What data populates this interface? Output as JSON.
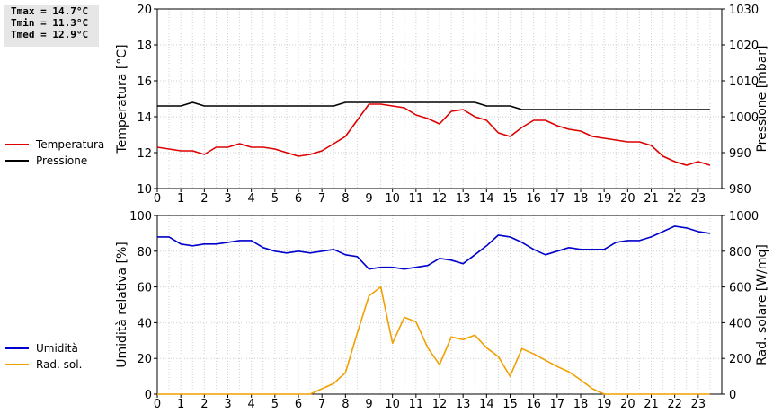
{
  "stats": {
    "tmax": "Tmax = 14.7°C",
    "tmin": "Tmin = 11.3°C",
    "tmed": "Tmed = 12.9°C"
  },
  "legend_top": [
    {
      "label": "Temperatura",
      "color": "#dd0000"
    },
    {
      "label": "Pressione",
      "color": "#000000"
    }
  ],
  "legend_bottom": [
    {
      "label": "Umidità",
      "color": "#0000cc"
    },
    {
      "label": "Rad. sol.",
      "color": "#f0a000"
    }
  ],
  "chart_data": [
    {
      "type": "line",
      "xlabel": "",
      "ylabel_left": "Temperatura [°C]",
      "ylabel_right": "Pressione [mbar]",
      "xlim": [
        0,
        24
      ],
      "ylim_left": [
        10,
        20
      ],
      "ylim_right": [
        980,
        1030
      ],
      "yticks_left": [
        10,
        12,
        14,
        16,
        18,
        20
      ],
      "yticks_right": [
        980,
        990,
        1000,
        1010,
        1020,
        1030
      ],
      "xticks": [
        0,
        1,
        2,
        3,
        4,
        5,
        6,
        7,
        8,
        9,
        10,
        11,
        12,
        13,
        14,
        15,
        16,
        17,
        18,
        19,
        20,
        21,
        22,
        23
      ],
      "grid": true,
      "series": [
        {
          "name": "Temperatura",
          "axis": "left",
          "color": "#dd0000",
          "x": [
            0,
            0.5,
            1,
            1.5,
            2,
            2.5,
            3,
            3.5,
            4,
            4.5,
            5,
            5.5,
            6,
            6.5,
            7,
            7.5,
            8,
            8.5,
            9,
            9.5,
            10,
            10.5,
            11,
            11.5,
            12,
            12.5,
            13,
            13.5,
            14,
            14.5,
            15,
            15.5,
            16,
            16.5,
            17,
            17.5,
            18,
            18.5,
            19,
            19.5,
            20,
            20.5,
            21,
            21.5,
            22,
            22.5,
            23,
            23.5
          ],
          "y": [
            12.3,
            12.2,
            12.1,
            12.1,
            11.9,
            12.3,
            12.3,
            12.5,
            12.3,
            12.3,
            12.2,
            12.0,
            11.8,
            11.9,
            12.1,
            12.5,
            12.9,
            13.8,
            14.7,
            14.7,
            14.6,
            14.5,
            14.1,
            13.9,
            13.6,
            14.3,
            14.4,
            14.0,
            13.8,
            13.1,
            12.9,
            13.4,
            13.8,
            13.8,
            13.5,
            13.3,
            13.2,
            12.9,
            12.8,
            12.7,
            12.6,
            12.6,
            12.4,
            11.8,
            11.5,
            11.3,
            11.5,
            11.3
          ]
        },
        {
          "name": "Pressione",
          "axis": "right",
          "color": "#000000",
          "x": [
            0,
            0.5,
            1,
            1.5,
            2,
            2.5,
            3,
            3.5,
            4,
            4.5,
            5,
            5.5,
            6,
            6.5,
            7,
            7.5,
            8,
            8.5,
            9,
            9.5,
            10,
            10.5,
            11,
            11.5,
            12,
            12.5,
            13,
            13.5,
            14,
            14.5,
            15,
            15.5,
            16,
            16.5,
            17,
            17.5,
            18,
            18.5,
            19,
            19.5,
            20,
            20.5,
            21,
            21.5,
            22,
            22.5,
            23,
            23.5
          ],
          "y": [
            1003,
            1003,
            1003,
            1004,
            1003,
            1003,
            1003,
            1003,
            1003,
            1003,
            1003,
            1003,
            1003,
            1003,
            1003,
            1003,
            1004,
            1004,
            1004,
            1004,
            1004,
            1004,
            1004,
            1004,
            1004,
            1004,
            1004,
            1004,
            1003,
            1003,
            1003,
            1002,
            1002,
            1002,
            1002,
            1002,
            1002,
            1002,
            1002,
            1002,
            1002,
            1002,
            1002,
            1002,
            1002,
            1002,
            1002,
            1002
          ]
        }
      ]
    },
    {
      "type": "line",
      "xlabel": "",
      "ylabel_left": "Umidità relativa [%]",
      "ylabel_right": "Rad. solare [W/mq]",
      "xlim": [
        0,
        24
      ],
      "ylim_left": [
        0,
        100
      ],
      "ylim_right": [
        0,
        1000
      ],
      "yticks_left": [
        0,
        20,
        40,
        60,
        80,
        100
      ],
      "yticks_right": [
        0,
        200,
        400,
        600,
        800,
        1000
      ],
      "xticks": [
        0,
        1,
        2,
        3,
        4,
        5,
        6,
        7,
        8,
        9,
        10,
        11,
        12,
        13,
        14,
        15,
        16,
        17,
        18,
        19,
        20,
        21,
        22,
        23
      ],
      "grid": true,
      "series": [
        {
          "name": "Umidità",
          "axis": "left",
          "color": "#0000cc",
          "x": [
            0,
            0.5,
            1,
            1.5,
            2,
            2.5,
            3,
            3.5,
            4,
            4.5,
            5,
            5.5,
            6,
            6.5,
            7,
            7.5,
            8,
            8.5,
            9,
            9.5,
            10,
            10.5,
            11,
            11.5,
            12,
            12.5,
            13,
            13.5,
            14,
            14.5,
            15,
            15.5,
            16,
            16.5,
            17,
            17.5,
            18,
            18.5,
            19,
            19.5,
            20,
            20.5,
            21,
            21.5,
            22,
            22.5,
            23,
            23.5
          ],
          "y": [
            88,
            88,
            84,
            83,
            84,
            84,
            85,
            86,
            86,
            82,
            80,
            79,
            80,
            79,
            80,
            81,
            78,
            77,
            70,
            71,
            71,
            70,
            71,
            72,
            76,
            75,
            73,
            78,
            83,
            89,
            88,
            85,
            81,
            78,
            80,
            82,
            81,
            81,
            81,
            85,
            86,
            86,
            88,
            91,
            94,
            93,
            91,
            90
          ]
        },
        {
          "name": "Rad. sol.",
          "axis": "right",
          "color": "#f0a000",
          "x": [
            0,
            0.5,
            1,
            1.5,
            2,
            2.5,
            3,
            3.5,
            4,
            4.5,
            5,
            5.5,
            6,
            6.5,
            7,
            7.5,
            8,
            8.5,
            9,
            9.5,
            10,
            10.5,
            11,
            11.5,
            12,
            12.5,
            13,
            13.5,
            14,
            14.5,
            15,
            15.5,
            16,
            16.5,
            17,
            17.5,
            18,
            18.5,
            19,
            19.5,
            20,
            20.5,
            21,
            21.5,
            22,
            22.5,
            23,
            23.5
          ],
          "y": [
            0,
            0,
            0,
            0,
            0,
            0,
            0,
            0,
            0,
            0,
            0,
            0,
            0,
            0,
            30,
            60,
            120,
            340,
            550,
            600,
            285,
            430,
            405,
            260,
            165,
            320,
            305,
            330,
            260,
            210,
            100,
            255,
            225,
            190,
            155,
            125,
            80,
            30,
            0,
            0,
            0,
            0,
            0,
            0,
            0,
            0,
            0,
            0
          ]
        }
      ]
    }
  ]
}
